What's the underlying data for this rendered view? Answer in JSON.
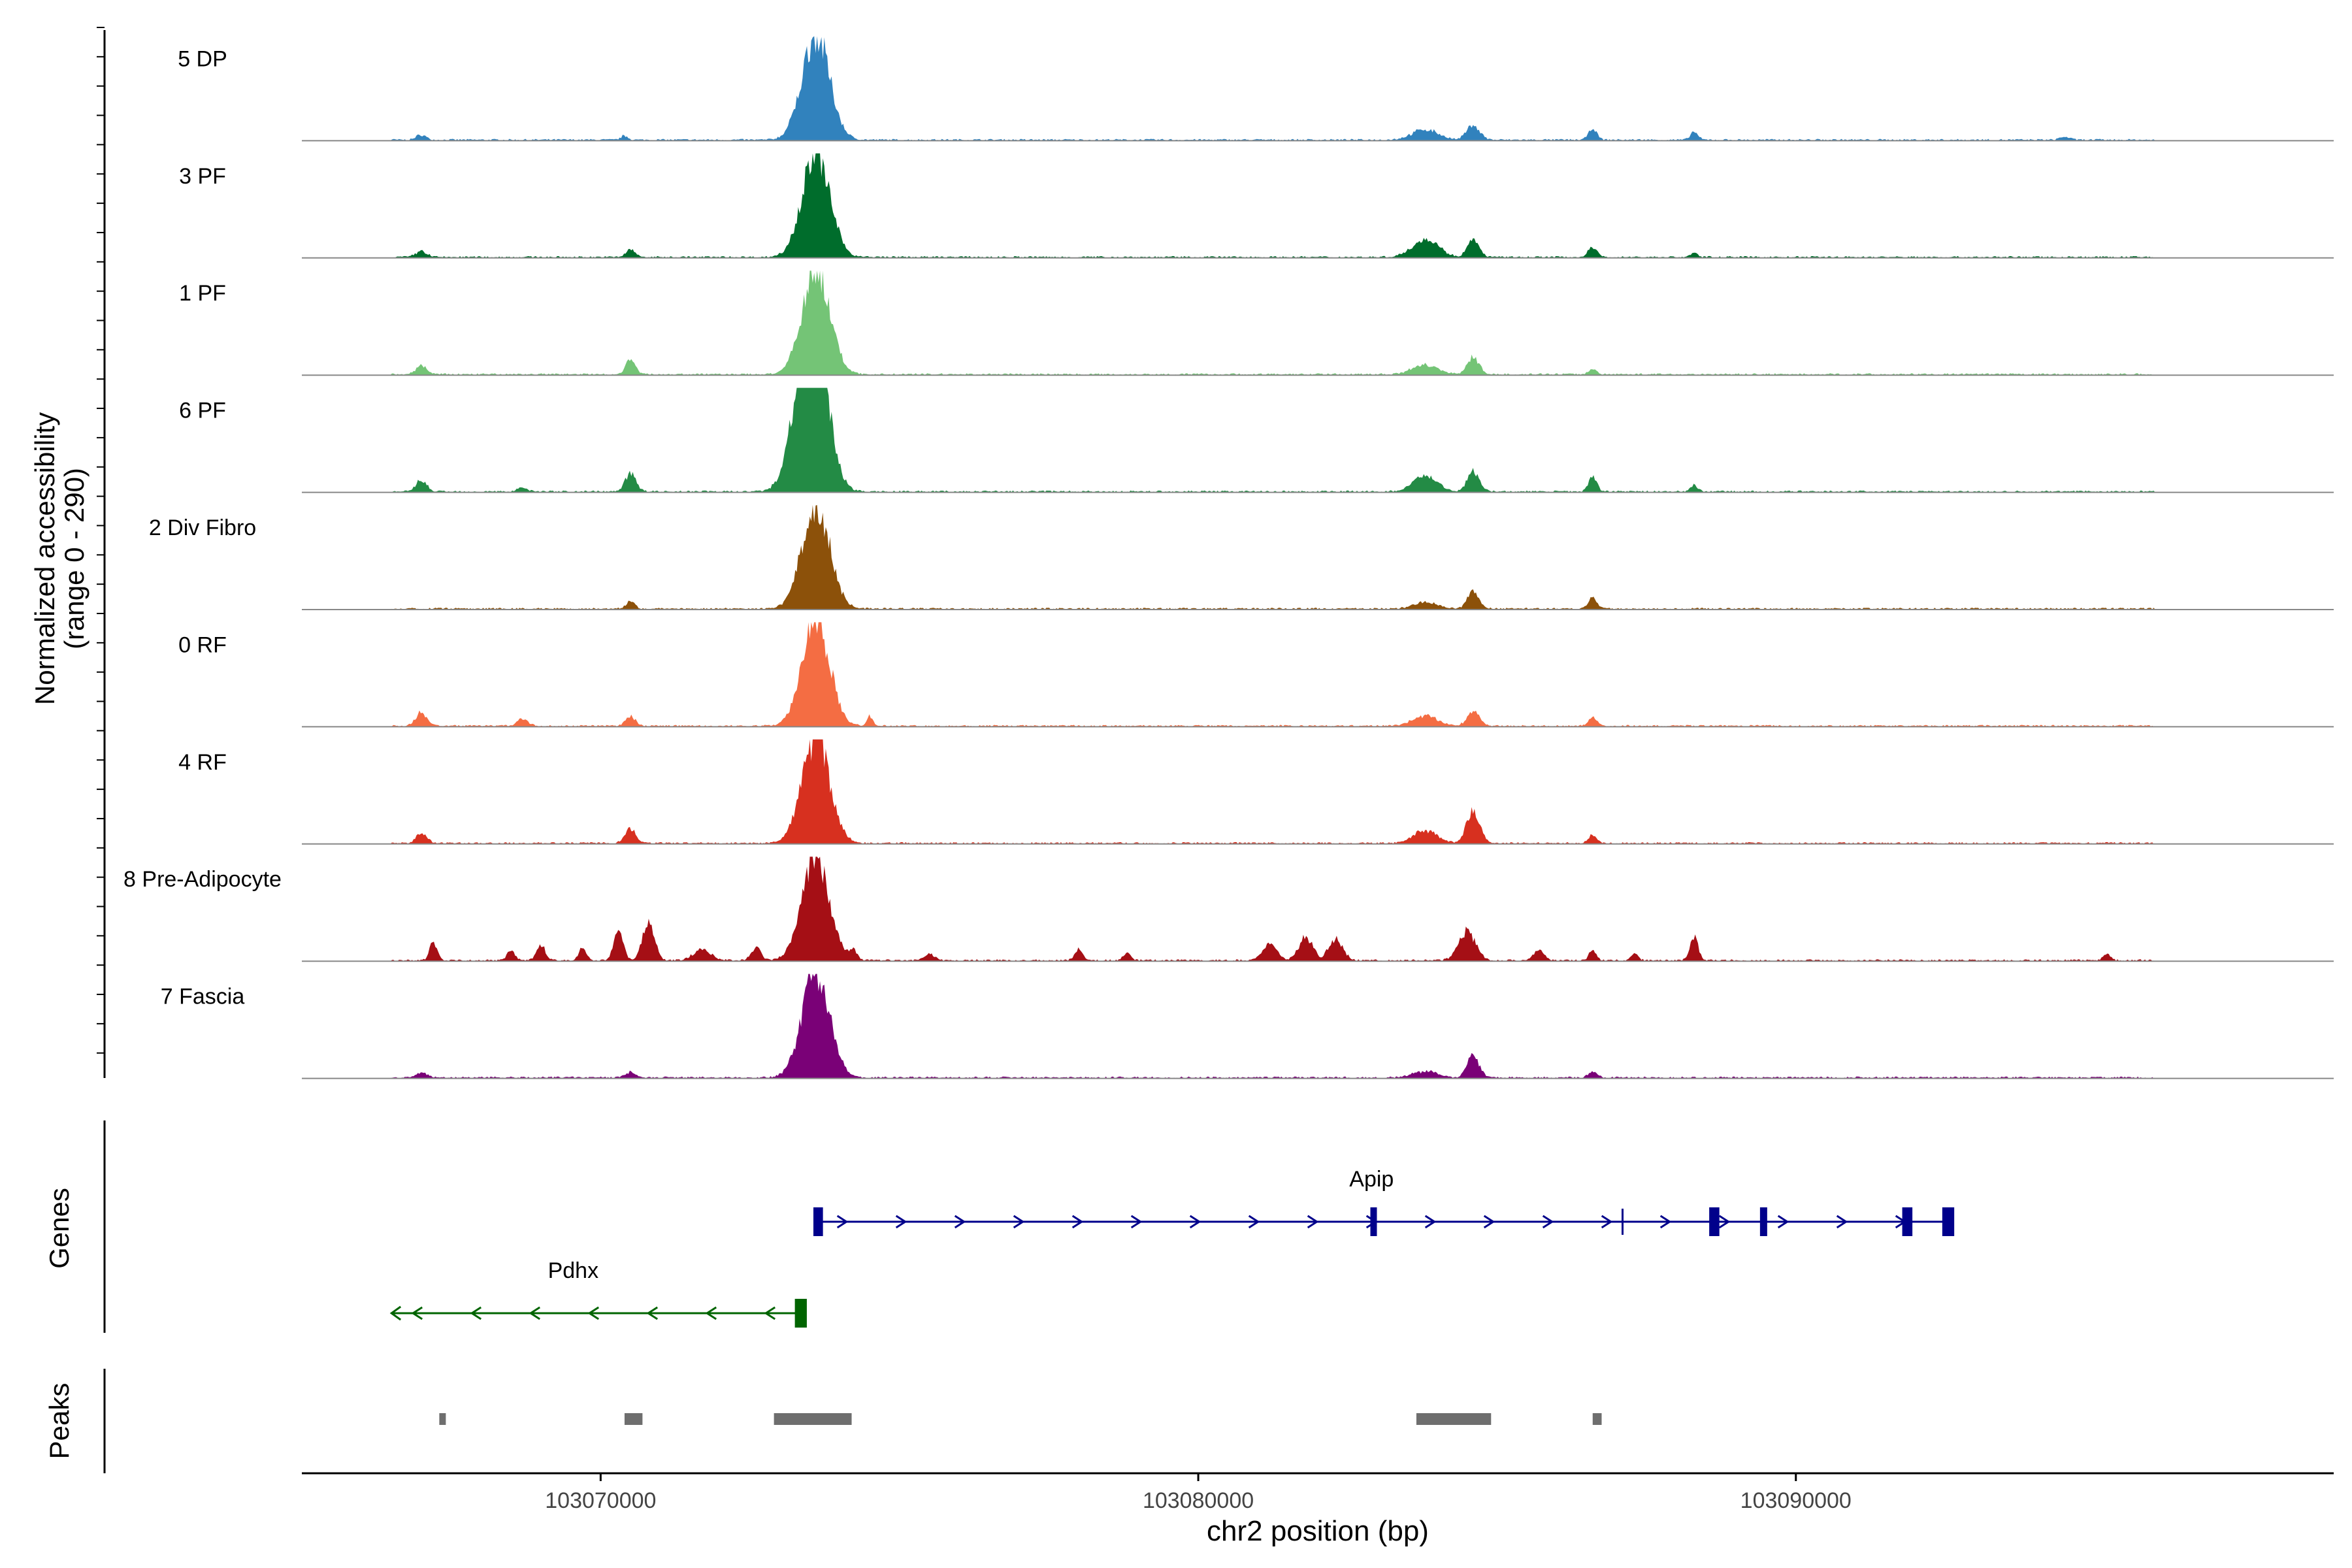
{
  "chart_data": {
    "type": "area",
    "title": "",
    "ylabel_line1": "Normalized accessibility",
    "ylabel_line2": "(range 0 - 290)",
    "xlabel": "chr2 position (bp)",
    "xlim": [
      103065000,
      103099000
    ],
    "ylim": [
      0,
      290
    ],
    "x_ticks": [
      103070000,
      103080000,
      103090000
    ],
    "x_tick_labels": [
      "103070000",
      "103080000",
      "103090000"
    ],
    "series": [
      {
        "name": "5 DP",
        "color": "#3182bd",
        "peaks": [
          [
            103067000,
            0.05,
            80
          ],
          [
            103070400,
            0.04,
            60
          ],
          [
            103073600,
            1.0,
            230,
            1
          ],
          [
            103083800,
            0.1,
            220
          ],
          [
            103084600,
            0.14,
            110
          ],
          [
            103086600,
            0.1,
            70
          ],
          [
            103088300,
            0.08,
            60
          ],
          [
            103094500,
            0.03,
            80
          ]
        ]
      },
      {
        "name": "3 PF",
        "color": "#006d2c",
        "peaks": [
          [
            103067000,
            0.06,
            90
          ],
          [
            103070500,
            0.07,
            80
          ],
          [
            103073600,
            1.0,
            230,
            1
          ],
          [
            103083800,
            0.17,
            220
          ],
          [
            103084600,
            0.16,
            100
          ],
          [
            103086600,
            0.1,
            70
          ],
          [
            103088300,
            0.04,
            60
          ]
        ]
      },
      {
        "name": "1 PF",
        "color": "#74c476",
        "peaks": [
          [
            103067000,
            0.08,
            90
          ],
          [
            103070500,
            0.14,
            80
          ],
          [
            103073600,
            1.0,
            230,
            1
          ],
          [
            103083800,
            0.09,
            220
          ],
          [
            103084600,
            0.16,
            100
          ],
          [
            103086600,
            0.05,
            70
          ]
        ]
      },
      {
        "name": "6 PF",
        "color": "#238b45",
        "peaks": [
          [
            103067000,
            0.11,
            90
          ],
          [
            103068700,
            0.04,
            80
          ],
          [
            103070500,
            0.18,
            90
          ],
          [
            103073600,
            1.0,
            230,
            2
          ],
          [
            103083800,
            0.15,
            200
          ],
          [
            103084600,
            0.19,
            100
          ],
          [
            103086600,
            0.14,
            70
          ],
          [
            103088300,
            0.06,
            60
          ]
        ]
      },
      {
        "name": "2 Div Fibro",
        "color": "#8c510a",
        "peaks": [
          [
            103070500,
            0.08,
            70
          ],
          [
            103073600,
            1.0,
            230,
            1
          ],
          [
            103083800,
            0.06,
            200
          ],
          [
            103084600,
            0.16,
            100
          ],
          [
            103086600,
            0.11,
            70
          ]
        ]
      },
      {
        "name": "0 RF",
        "color": "#f46d43",
        "peaks": [
          [
            103067000,
            0.13,
            90
          ],
          [
            103068700,
            0.07,
            90
          ],
          [
            103070500,
            0.09,
            80
          ],
          [
            103073600,
            1.0,
            230,
            1
          ],
          [
            103074500,
            0.1,
            50
          ],
          [
            103083800,
            0.1,
            200
          ],
          [
            103084600,
            0.14,
            100
          ],
          [
            103086600,
            0.08,
            70
          ]
        ]
      },
      {
        "name": "4 RF",
        "color": "#d7301f",
        "peaks": [
          [
            103067000,
            0.09,
            90
          ],
          [
            103070500,
            0.14,
            90
          ],
          [
            103073600,
            1.0,
            230,
            1
          ],
          [
            103083800,
            0.12,
            200
          ],
          [
            103084600,
            0.3,
            110
          ],
          [
            103086600,
            0.08,
            70
          ]
        ]
      },
      {
        "name": "8 Pre-Adipocyte",
        "color": "#a50f15",
        "peaks": [
          [
            103067200,
            0.18,
            60
          ],
          [
            103068500,
            0.11,
            60
          ],
          [
            103069000,
            0.15,
            70
          ],
          [
            103069700,
            0.12,
            60
          ],
          [
            103070300,
            0.26,
            80
          ],
          [
            103070800,
            0.35,
            100
          ],
          [
            103071700,
            0.1,
            150
          ],
          [
            103072600,
            0.13,
            80
          ],
          [
            103073600,
            1.0,
            230,
            1
          ],
          [
            103074200,
            0.12,
            80
          ],
          [
            103075500,
            0.07,
            80
          ],
          [
            103078000,
            0.1,
            70
          ],
          [
            103078800,
            0.08,
            60
          ],
          [
            103081200,
            0.16,
            120
          ],
          [
            103081800,
            0.22,
            120
          ],
          [
            103082300,
            0.2,
            120
          ],
          [
            103084500,
            0.28,
            140
          ],
          [
            103085700,
            0.1,
            90
          ],
          [
            103086600,
            0.1,
            60
          ],
          [
            103087300,
            0.07,
            60
          ],
          [
            103088300,
            0.22,
            70
          ],
          [
            103095200,
            0.06,
            60
          ]
        ]
      },
      {
        "name": "7 Fascia",
        "color": "#7a0177",
        "peaks": [
          [
            103067000,
            0.05,
            90
          ],
          [
            103070500,
            0.05,
            90
          ],
          [
            103073600,
            1.0,
            230,
            1
          ],
          [
            103083800,
            0.06,
            200
          ],
          [
            103084600,
            0.21,
            100
          ],
          [
            103086600,
            0.06,
            70
          ]
        ]
      }
    ],
    "genes_label": "Genes",
    "genes": [
      {
        "name": "Apip",
        "strand": "+",
        "color": "#00008b",
        "start": 103073600,
        "end": 103092600,
        "exons": [
          [
            103073560,
            103073720
          ],
          [
            103082880,
            103082980
          ],
          [
            103088550,
            103088720
          ],
          [
            103089400,
            103089520
          ],
          [
            103091780,
            103091950
          ],
          [
            103092450,
            103092650
          ]
        ],
        "minor_tick": 103087100
      },
      {
        "name": "Pdhx",
        "strand": "-",
        "color": "#006400",
        "start": 103066500,
        "end": 103073400,
        "exons": [
          [
            103073250,
            103073450
          ]
        ]
      }
    ],
    "peaks_label": "Peaks",
    "peak_regions": [
      [
        103067300,
        103067400
      ],
      [
        103070400,
        103070700
      ],
      [
        103072900,
        103074200
      ],
      [
        103083650,
        103084900
      ],
      [
        103086600,
        103086750
      ]
    ]
  }
}
